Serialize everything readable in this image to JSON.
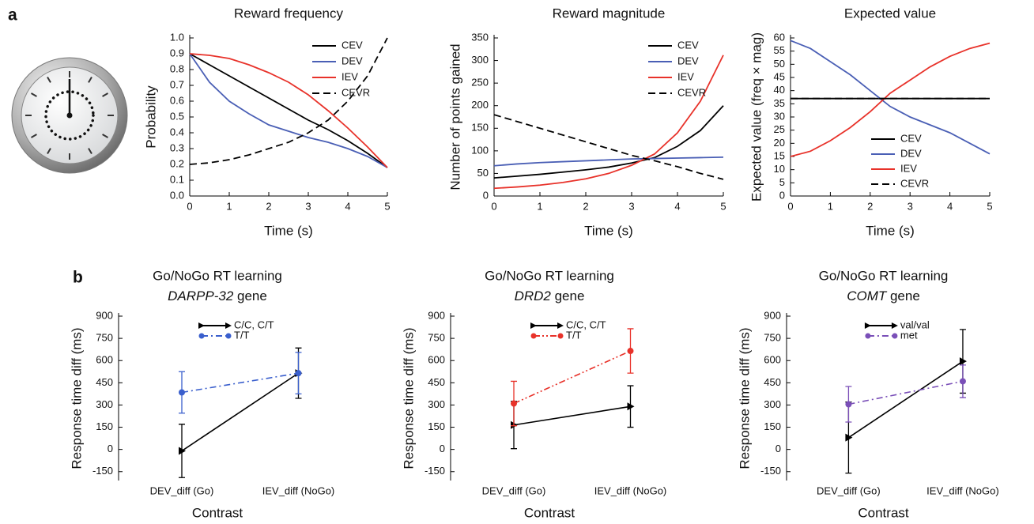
{
  "panels": [
    "a",
    "b"
  ],
  "chart_data": [
    {
      "type": "line",
      "title": "Reward frequency",
      "xlabel": "Time (s)",
      "ylabel": "Probability",
      "x": [
        0,
        0.5,
        1,
        1.5,
        2,
        2.5,
        3,
        3.5,
        4,
        4.5,
        5
      ],
      "xlim": [
        0,
        5
      ],
      "xticks": [
        0,
        1,
        2,
        3,
        4,
        5
      ],
      "ylim": [
        0,
        1
      ],
      "yticks": [
        {
          "value": 0,
          "label": "0.0"
        },
        0.1,
        0.2,
        0.3,
        0.4,
        0.5,
        0.6,
        0.7,
        0.8,
        0.9,
        {
          "value": 1,
          "label": "1.0"
        }
      ],
      "legend": "upper right",
      "series": [
        {
          "name": "CEV",
          "color": "#000000",
          "values": [
            0.9,
            0.83,
            0.76,
            0.69,
            0.62,
            0.55,
            0.48,
            0.42,
            0.35,
            0.27,
            0.18
          ]
        },
        {
          "name": "DEV",
          "color": "#4a5fb5",
          "values": [
            0.9,
            0.72,
            0.6,
            0.52,
            0.45,
            0.41,
            0.37,
            0.34,
            0.3,
            0.25,
            0.18
          ]
        },
        {
          "name": "IEV",
          "color": "#e8322a",
          "values": [
            0.9,
            0.89,
            0.87,
            0.83,
            0.78,
            0.72,
            0.64,
            0.54,
            0.43,
            0.31,
            0.18
          ]
        },
        {
          "name": "CEVR",
          "color": "#000000",
          "dash": "dashed",
          "values": [
            0.2,
            0.21,
            0.23,
            0.26,
            0.3,
            0.34,
            0.4,
            0.48,
            0.6,
            0.76,
            1.0
          ]
        }
      ]
    },
    {
      "type": "line",
      "title": "Reward magnitude",
      "xlabel": "Time (s)",
      "ylabel": "Number of points gained",
      "x": [
        0,
        0.5,
        1,
        1.5,
        2,
        2.5,
        3,
        3.5,
        4,
        4.5,
        5
      ],
      "xlim": [
        0,
        5
      ],
      "xticks": [
        0,
        1,
        2,
        3,
        4,
        5
      ],
      "ylim": [
        0,
        350
      ],
      "yticks": [
        0,
        50,
        100,
        150,
        200,
        250,
        300,
        350
      ],
      "legend": "upper right",
      "series": [
        {
          "name": "CEV",
          "color": "#000000",
          "values": [
            40,
            44,
            48,
            53,
            58,
            64,
            73,
            85,
            110,
            145,
            200
          ]
        },
        {
          "name": "DEV",
          "color": "#4a5fb5",
          "values": [
            67,
            71,
            74,
            76,
            78,
            80,
            82,
            83,
            84,
            85,
            86
          ]
        },
        {
          "name": "IEV",
          "color": "#e8322a",
          "values": [
            17,
            20,
            24,
            30,
            38,
            50,
            68,
            93,
            140,
            210,
            312
          ]
        },
        {
          "name": "CEVR",
          "color": "#000000",
          "dash": "dashed",
          "values": [
            180,
            165,
            150,
            135,
            120,
            105,
            90,
            78,
            65,
            50,
            37
          ]
        }
      ]
    },
    {
      "type": "line",
      "title": "Expected value",
      "xlabel": "Time (s)",
      "ylabel": "Expected value (freq × mag)",
      "x": [
        0,
        0.5,
        1,
        1.5,
        2,
        2.5,
        3,
        3.5,
        4,
        4.5,
        5
      ],
      "xlim": [
        0,
        5
      ],
      "xticks": [
        0,
        1,
        2,
        3,
        4,
        5
      ],
      "ylim": [
        0,
        60
      ],
      "yticks": [
        0,
        5,
        10,
        15,
        20,
        25,
        30,
        35,
        40,
        45,
        50,
        55,
        60
      ],
      "legend": "lower right",
      "series": [
        {
          "name": "CEV",
          "color": "#000000",
          "values": [
            37,
            37,
            37,
            37,
            37,
            37,
            37,
            37,
            37,
            37,
            37
          ]
        },
        {
          "name": "DEV",
          "color": "#4a5fb5",
          "values": [
            59,
            56,
            51,
            46,
            40,
            34,
            30,
            27,
            24,
            20,
            16
          ]
        },
        {
          "name": "IEV",
          "color": "#e8322a",
          "values": [
            15,
            17,
            21,
            26,
            32,
            39,
            44,
            49,
            53,
            56,
            58
          ]
        },
        {
          "name": "CEVR",
          "color": "#000000",
          "dash": "dashed",
          "values": [
            37,
            37,
            37,
            37,
            37,
            37,
            37,
            37,
            37,
            37,
            37
          ]
        }
      ]
    },
    {
      "type": "line",
      "title": "Go/NoGo RT learning",
      "subtitle": "DARPP-32 gene",
      "xlabel": "Contrast",
      "ylabel": "Response time diff (ms)",
      "categories": [
        "DEV_diff (Go)",
        "IEV_diff (NoGo)"
      ],
      "ylim": [
        -210,
        900
      ],
      "yticks": [
        -150,
        0,
        150,
        300,
        450,
        600,
        750,
        900
      ],
      "legend": "upper center",
      "series": [
        {
          "name": "C/C, C/T",
          "color": "#000000",
          "marker": "triangle",
          "values": [
            -10,
            515
          ],
          "errors": [
            180,
            170
          ]
        },
        {
          "name": "T/T",
          "color": "#3a5fcd",
          "marker": "circle",
          "dash": "dashdot",
          "values": [
            385,
            515
          ],
          "errors": [
            140,
            140
          ]
        }
      ]
    },
    {
      "type": "line",
      "title": "Go/NoGo RT learning",
      "subtitle": "DRD2 gene",
      "xlabel": "Contrast",
      "ylabel": "Response time diff (ms)",
      "categories": [
        "DEV_diff (Go)",
        "IEV_diff (NoGo)"
      ],
      "ylim": [
        -210,
        900
      ],
      "yticks": [
        -150,
        0,
        150,
        300,
        450,
        600,
        750,
        900
      ],
      "legend": "upper center",
      "series": [
        {
          "name": "C/C, C/T",
          "color": "#000000",
          "marker": "triangle",
          "values": [
            165,
            290
          ],
          "errors": [
            160,
            140
          ]
        },
        {
          "name": "T/T",
          "color": "#e8322a",
          "marker": "circle",
          "dash": "dashdotdot",
          "values": [
            310,
            665
          ],
          "errors": [
            150,
            150
          ]
        }
      ]
    },
    {
      "type": "line",
      "title": "Go/NoGo RT learning",
      "subtitle": "COMT gene",
      "xlabel": "Contrast",
      "ylabel": "Response time diff (ms)",
      "categories": [
        "DEV_diff (Go)",
        "IEV_diff (NoGo)"
      ],
      "ylim": [
        -210,
        900
      ],
      "yticks": [
        -150,
        0,
        150,
        300,
        450,
        600,
        750,
        900
      ],
      "legend": "upper center",
      "series": [
        {
          "name": "val/val",
          "color": "#000000",
          "marker": "triangle",
          "values": [
            80,
            595
          ],
          "errors": [
            240,
            215
          ]
        },
        {
          "name": "met",
          "color": "#7a4fb8",
          "marker": "circle",
          "dash": "dashdot",
          "values": [
            305,
            460
          ],
          "errors": [
            120,
            110
          ]
        }
      ]
    }
  ]
}
